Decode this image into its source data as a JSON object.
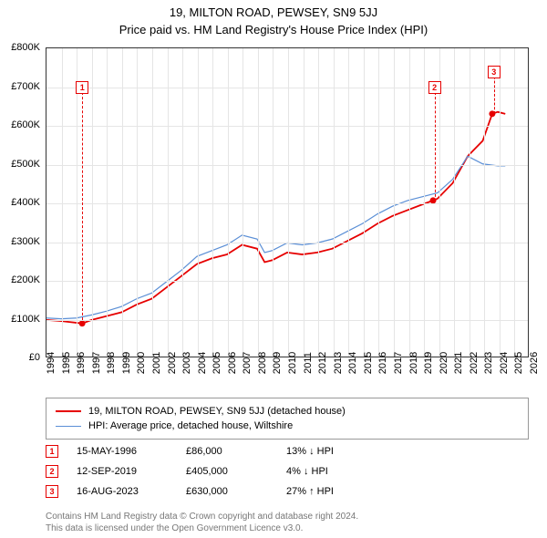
{
  "title": "19, MILTON ROAD, PEWSEY, SN9 5JJ",
  "subtitle": "Price paid vs. HM Land Registry's House Price Index (HPI)",
  "chart": {
    "type": "line",
    "background_color": "#ffffff",
    "grid_color": "#e5e5e5",
    "border_color": "#333333",
    "xlim": [
      1994,
      2026
    ],
    "ylim": [
      0,
      800000
    ],
    "y_ticks": [
      0,
      100000,
      200000,
      300000,
      400000,
      500000,
      600000,
      700000,
      800000
    ],
    "y_tick_labels": [
      "£0",
      "£100K",
      "£200K",
      "£300K",
      "£400K",
      "£500K",
      "£600K",
      "£700K",
      "£800K"
    ],
    "x_ticks": [
      1994,
      1995,
      1996,
      1997,
      1998,
      1999,
      2000,
      2001,
      2002,
      2003,
      2004,
      2005,
      2006,
      2007,
      2008,
      2009,
      2010,
      2011,
      2012,
      2013,
      2014,
      2015,
      2016,
      2017,
      2018,
      2019,
      2020,
      2021,
      2022,
      2023,
      2024,
      2025,
      2026
    ],
    "label_fontsize": 11,
    "title_fontsize": 13,
    "series": [
      {
        "name": "price_paid",
        "label": "19, MILTON ROAD, PEWSEY, SN9 5JJ (detached house)",
        "color": "#e60000",
        "line_width": 1.8,
        "data": [
          [
            1994,
            95000
          ],
          [
            1995,
            92000
          ],
          [
            1996.37,
            86000
          ],
          [
            1997,
            95000
          ],
          [
            1998,
            105000
          ],
          [
            1999,
            115000
          ],
          [
            2000,
            135000
          ],
          [
            2001,
            150000
          ],
          [
            2002,
            180000
          ],
          [
            2003,
            210000
          ],
          [
            2004,
            240000
          ],
          [
            2005,
            255000
          ],
          [
            2006,
            265000
          ],
          [
            2007,
            290000
          ],
          [
            2008,
            280000
          ],
          [
            2008.5,
            245000
          ],
          [
            2009,
            250000
          ],
          [
            2010,
            270000
          ],
          [
            2011,
            265000
          ],
          [
            2012,
            270000
          ],
          [
            2013,
            280000
          ],
          [
            2014,
            300000
          ],
          [
            2015,
            320000
          ],
          [
            2016,
            345000
          ],
          [
            2017,
            365000
          ],
          [
            2018,
            380000
          ],
          [
            2019,
            395000
          ],
          [
            2019.7,
            405000
          ],
          [
            2020,
            410000
          ],
          [
            2021,
            450000
          ],
          [
            2022,
            520000
          ],
          [
            2023,
            560000
          ],
          [
            2023.63,
            630000
          ],
          [
            2024,
            635000
          ],
          [
            2024.5,
            630000
          ]
        ]
      },
      {
        "name": "hpi",
        "label": "HPI: Average price, detached house, Wiltshire",
        "color": "#5b8fd6",
        "line_width": 1.2,
        "data": [
          [
            1994,
            100000
          ],
          [
            1995,
            98000
          ],
          [
            1996,
            100000
          ],
          [
            1997,
            108000
          ],
          [
            1998,
            118000
          ],
          [
            1999,
            130000
          ],
          [
            2000,
            150000
          ],
          [
            2001,
            165000
          ],
          [
            2002,
            195000
          ],
          [
            2003,
            225000
          ],
          [
            2004,
            260000
          ],
          [
            2005,
            275000
          ],
          [
            2006,
            290000
          ],
          [
            2007,
            315000
          ],
          [
            2008,
            305000
          ],
          [
            2008.5,
            270000
          ],
          [
            2009,
            275000
          ],
          [
            2010,
            295000
          ],
          [
            2011,
            290000
          ],
          [
            2012,
            295000
          ],
          [
            2013,
            305000
          ],
          [
            2014,
            325000
          ],
          [
            2015,
            345000
          ],
          [
            2016,
            370000
          ],
          [
            2017,
            390000
          ],
          [
            2018,
            405000
          ],
          [
            2019,
            415000
          ],
          [
            2020,
            425000
          ],
          [
            2021,
            460000
          ],
          [
            2022,
            520000
          ],
          [
            2023,
            500000
          ],
          [
            2024,
            495000
          ],
          [
            2024.5,
            495000
          ]
        ]
      }
    ],
    "sale_markers": [
      {
        "num": "1",
        "x": 1996.37,
        "y": 86000,
        "color": "#e60000",
        "box_y": 700000
      },
      {
        "num": "2",
        "x": 2019.7,
        "y": 405000,
        "color": "#e60000",
        "box_y": 700000
      },
      {
        "num": "3",
        "x": 2023.63,
        "y": 630000,
        "color": "#e60000",
        "box_y": 740000
      }
    ]
  },
  "legend": {
    "border_color": "#999999",
    "items": [
      {
        "color": "#e60000",
        "width": 2,
        "label": "19, MILTON ROAD, PEWSEY, SN9 5JJ (detached house)"
      },
      {
        "color": "#5b8fd6",
        "width": 1,
        "label": "HPI: Average price, detached house, Wiltshire"
      }
    ]
  },
  "sales": [
    {
      "num": "1",
      "date": "15-MAY-1996",
      "price": "£86,000",
      "pct": "13% ↓ HPI",
      "color": "#e60000"
    },
    {
      "num": "2",
      "date": "12-SEP-2019",
      "price": "£405,000",
      "pct": "4% ↓ HPI",
      "color": "#e60000"
    },
    {
      "num": "3",
      "date": "16-AUG-2023",
      "price": "£630,000",
      "pct": "27% ↑ HPI",
      "color": "#e60000"
    }
  ],
  "footer": {
    "line1": "Contains HM Land Registry data © Crown copyright and database right 2024.",
    "line2": "This data is licensed under the Open Government Licence v3.0.",
    "color": "#777777"
  }
}
